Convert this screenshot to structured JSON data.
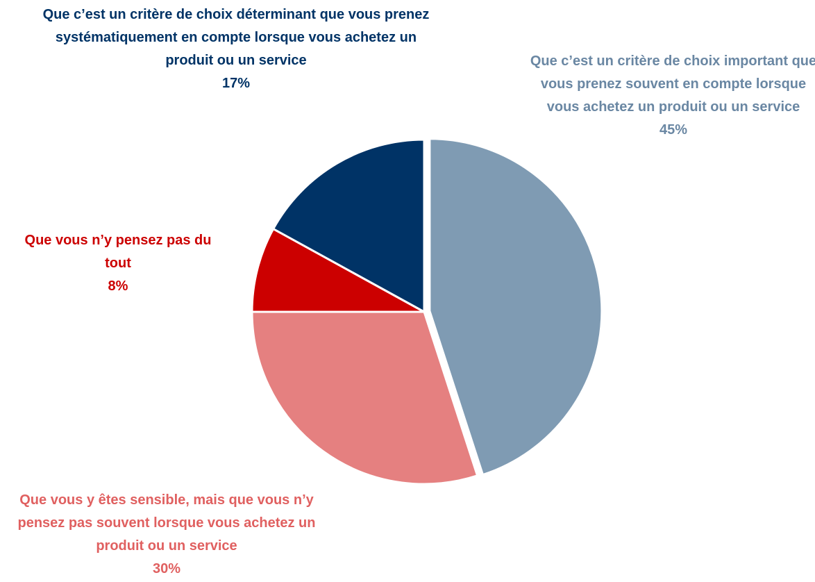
{
  "chart_data": {
    "type": "pie",
    "categories": [
      "Que c’est un critère de choix important que vous prenez souvent en compte lorsque vous achetez un produit ou un service",
      "Que vous y êtes sensible, mais que vous n’y pensez pas souvent lorsque vous achetez un produit ou un service",
      "Que vous n’y pensez pas du tout",
      "Que c’est un critère de choix déterminant que vous prenez systématiquement en compte lorsque vous achetez un produit ou un service"
    ],
    "values": [
      45,
      30,
      8,
      17
    ],
    "value_labels": [
      "45%",
      "30%",
      "8%",
      "17%"
    ],
    "colors": [
      "#7f9bb3",
      "#e58080",
      "#cc0000",
      "#003366"
    ],
    "label_colors": [
      "#6a87a3",
      "#e06060",
      "#cc0000",
      "#003366"
    ]
  }
}
